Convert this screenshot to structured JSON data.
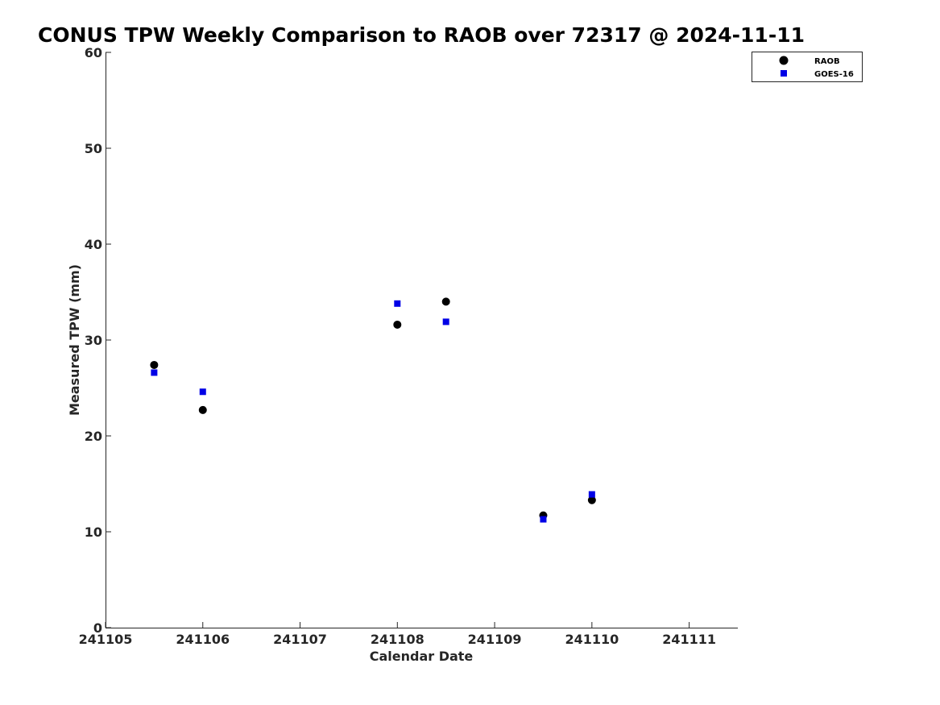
{
  "chart_data": {
    "type": "scatter",
    "title": "CONUS TPW Weekly Comparison to RAOB over 72317 @ 2024-11-11",
    "xlabel": "Calendar Date",
    "ylabel": "Measured TPW (mm)",
    "x_ticks": [
      "241105",
      "241106",
      "241107",
      "241108",
      "241109",
      "241110",
      "241111"
    ],
    "xlim": [
      "241105",
      "241111.5"
    ],
    "ylim": [
      0,
      60
    ],
    "y_ticks": [
      0,
      10,
      20,
      30,
      40,
      50,
      60
    ],
    "grid": false,
    "legend_position": "top-right",
    "series": [
      {
        "name": "RAOB",
        "marker": "circle",
        "color": "#000000",
        "points": [
          {
            "x": "241105.5",
            "y": 27.4
          },
          {
            "x": "241106",
            "y": 22.7
          },
          {
            "x": "241108",
            "y": 31.6
          },
          {
            "x": "241108.5",
            "y": 34.0
          },
          {
            "x": "241109.5",
            "y": 11.7
          },
          {
            "x": "241110",
            "y": 13.3
          }
        ]
      },
      {
        "name": "GOES-16",
        "marker": "square",
        "color": "#0000e6",
        "points": [
          {
            "x": "241105.5",
            "y": 26.6
          },
          {
            "x": "241106",
            "y": 24.6
          },
          {
            "x": "241108",
            "y": 33.8
          },
          {
            "x": "241108.5",
            "y": 31.9
          },
          {
            "x": "241109.5",
            "y": 11.3
          },
          {
            "x": "241110",
            "y": 13.9
          }
        ]
      }
    ]
  }
}
